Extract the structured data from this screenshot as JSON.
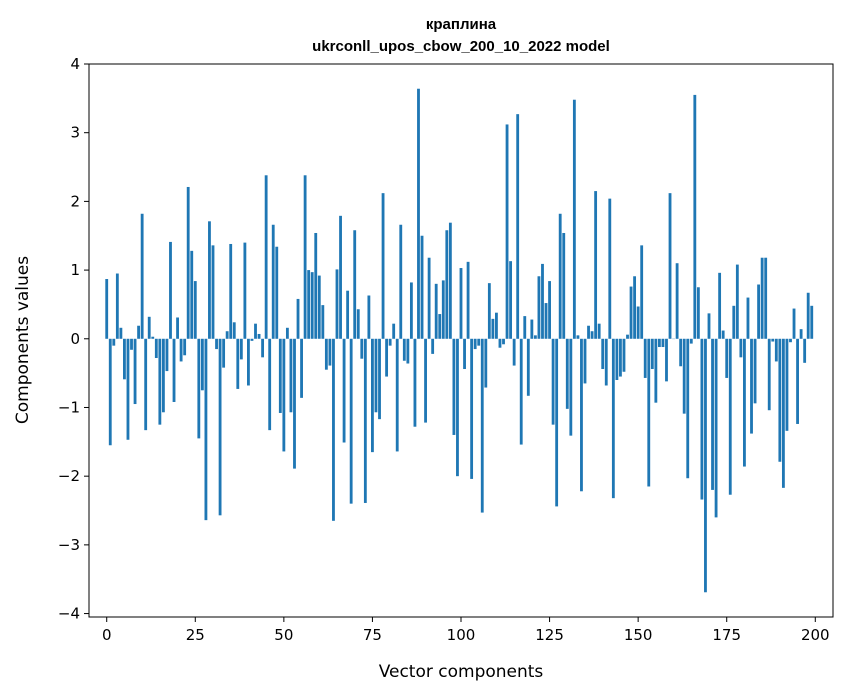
{
  "chart_data": {
    "type": "bar",
    "title_lines": [
      "краплина",
      "ukrconll_upos_cbow_200_10_2022 model"
    ],
    "xlabel": "Vector components",
    "ylabel": "Components values",
    "xlim": [
      -5,
      205
    ],
    "ylim": [
      -4.05,
      4.0
    ],
    "xticks": [
      0,
      25,
      50,
      75,
      100,
      125,
      150,
      175,
      200
    ],
    "yticks": [
      -4,
      -3,
      -2,
      -1,
      0,
      1,
      2,
      3,
      4
    ],
    "xtick_labels": [
      "0",
      "25",
      "50",
      "75",
      "100",
      "125",
      "150",
      "175",
      "200"
    ],
    "ytick_labels": [
      "−4",
      "−3",
      "−2",
      "−1",
      "0",
      "1",
      "2",
      "3",
      "4"
    ],
    "grid": false,
    "bar_color": "#1f77b4",
    "values": [
      0.87,
      -1.55,
      -0.1,
      0.95,
      0.16,
      -0.59,
      -1.47,
      -0.16,
      -0.95,
      0.19,
      1.82,
      -1.33,
      0.32,
      0.03,
      -0.28,
      -1.25,
      -1.07,
      -0.47,
      1.41,
      -0.92,
      0.31,
      -0.33,
      -0.24,
      2.21,
      1.28,
      0.84,
      -1.45,
      -0.75,
      -2.64,
      1.71,
      1.36,
      -0.15,
      -2.57,
      -0.42,
      0.11,
      1.38,
      0.24,
      -0.73,
      -0.3,
      1.4,
      -0.68,
      -0.03,
      0.22,
      0.07,
      -0.27,
      2.38,
      -1.33,
      1.66,
      1.34,
      -1.08,
      -1.64,
      0.16,
      -1.07,
      -1.89,
      0.58,
      -0.86,
      2.38,
      1.0,
      0.97,
      1.54,
      0.92,
      0.49,
      -0.45,
      -0.39,
      -2.65,
      1.01,
      1.79,
      -1.51,
      0.7,
      -2.4,
      1.58,
      0.43,
      -0.29,
      -2.39,
      0.63,
      -1.65,
      -1.07,
      -1.17,
      2.12,
      -0.55,
      -0.1,
      0.22,
      -1.64,
      1.66,
      -0.32,
      -0.36,
      0.82,
      -1.28,
      3.64,
      1.5,
      -1.22,
      1.18,
      -0.22,
      0.8,
      0.36,
      0.85,
      1.58,
      1.69,
      -1.4,
      -2.0,
      1.03,
      -0.44,
      1.12,
      -2.04,
      -0.15,
      -0.1,
      -2.53,
      -0.71,
      0.81,
      0.29,
      0.38,
      -0.13,
      -0.08,
      3.12,
      1.13,
      -0.39,
      3.27,
      -1.54,
      0.33,
      -0.83,
      0.28,
      0.05,
      0.91,
      1.09,
      0.52,
      0.84,
      -1.25,
      -2.44,
      1.82,
      1.54,
      -1.02,
      -1.41,
      3.48,
      0.05,
      -2.22,
      -0.65,
      0.19,
      0.11,
      2.15,
      0.22,
      -0.44,
      -0.68,
      2.04,
      -2.32,
      -0.6,
      -0.55,
      -0.48,
      0.06,
      0.76,
      0.91,
      0.47,
      1.36,
      -0.57,
      -2.15,
      -0.44,
      -0.93,
      -0.12,
      -0.12,
      -0.62,
      2.12,
      0.0,
      1.1,
      -0.4,
      -1.09,
      -2.03,
      -0.07,
      3.55,
      0.75,
      -2.34,
      -3.69,
      0.37,
      -2.2,
      -2.6,
      0.96,
      0.12,
      -0.57,
      -2.27,
      0.48,
      1.08,
      -0.27,
      -1.86,
      0.6,
      -1.38,
      -0.94,
      0.79,
      1.18,
      1.18,
      -1.04,
      -0.04,
      -0.33,
      -1.79,
      -2.17,
      -1.34,
      -0.05,
      0.44,
      -1.24,
      0.14,
      -0.35,
      0.67,
      0.48
    ]
  }
}
